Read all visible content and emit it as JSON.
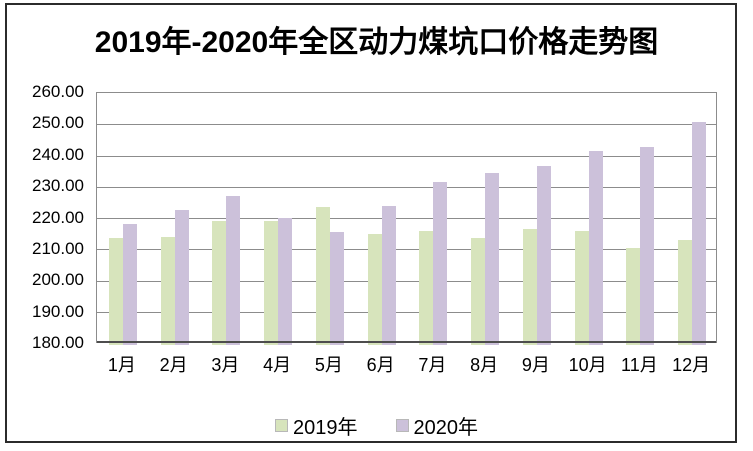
{
  "chart": {
    "title": "2019年-2020年全区动力煤坑口价格走势图"
  },
  "chart_data": {
    "type": "bar",
    "title": "2019年-2020年全区动力煤坑口价格走势图",
    "categories": [
      "1月",
      "2月",
      "3月",
      "4月",
      "5月",
      "6月",
      "7月",
      "8月",
      "9月",
      "10月",
      "11月",
      "12月"
    ],
    "series": [
      {
        "name": "2019年",
        "color": "#d7e4bc",
        "values": [
          213,
          213.5,
          218.5,
          218.5,
          223,
          214.5,
          215.5,
          213,
          216,
          215.5,
          210,
          212.5
        ]
      },
      {
        "name": "2020年",
        "color": "#ccc1da",
        "values": [
          217.5,
          222,
          226.5,
          219.5,
          215,
          223.5,
          231,
          234,
          236,
          241,
          242,
          250
        ]
      }
    ],
    "xlabel": "",
    "ylabel": "",
    "ylim": [
      180,
      260
    ],
    "y_tick_step": 10,
    "y_ticks": [
      "260.00",
      "250.00",
      "240.00",
      "230.00",
      "220.00",
      "210.00",
      "200.00",
      "190.00",
      "180.00"
    ],
    "grid": "horizontal",
    "legend_position": "bottom"
  },
  "style": {
    "grid_color": "#8c8c8c",
    "axis_color": "#4d4d4d",
    "frame_color": "#2b2b2b",
    "background": "#ffffff"
  }
}
